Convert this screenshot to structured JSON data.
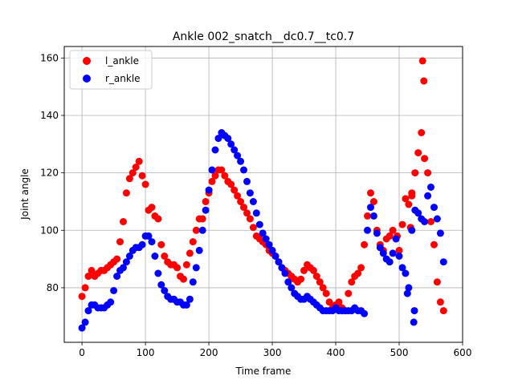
{
  "chart_data": {
    "type": "scatter",
    "title": "Ankle 002_snatch__dc0.7__tc0.7",
    "xlabel": "Time frame",
    "ylabel": "Joint angle",
    "xlim": [
      -28,
      600
    ],
    "ylim": [
      61,
      164
    ],
    "xticks": [
      0,
      100,
      200,
      300,
      400,
      500,
      600
    ],
    "yticks": [
      80,
      100,
      120,
      140,
      160
    ],
    "grid": true,
    "legend_position": "top-left",
    "series": [
      {
        "name": "l_ankle",
        "color": "#ff0000",
        "x": [
          0,
          5,
          10,
          15,
          20,
          25,
          30,
          35,
          40,
          45,
          50,
          55,
          60,
          65,
          70,
          75,
          80,
          85,
          90,
          95,
          100,
          105,
          110,
          115,
          120,
          125,
          130,
          135,
          140,
          145,
          150,
          155,
          160,
          165,
          170,
          175,
          180,
          185,
          190,
          195,
          200,
          205,
          210,
          215,
          220,
          225,
          230,
          235,
          240,
          245,
          250,
          255,
          260,
          265,
          270,
          275,
          280,
          285,
          290,
          295,
          300,
          305,
          310,
          315,
          320,
          325,
          330,
          335,
          340,
          345,
          350,
          355,
          360,
          365,
          370,
          375,
          380,
          385,
          390,
          395,
          400,
          405,
          410,
          415,
          420,
          425,
          430,
          435,
          440,
          445,
          450,
          455,
          460,
          465,
          470,
          475,
          480,
          485,
          490,
          495,
          500,
          505,
          510,
          515,
          520,
          525,
          530,
          535,
          540,
          545,
          550,
          555,
          560,
          565,
          570,
          537,
          539,
          520,
          518,
          497
        ],
        "y": [
          77,
          80,
          84,
          86,
          84,
          85,
          86,
          86,
          87,
          88,
          89,
          90,
          96,
          103,
          113,
          118,
          120,
          122,
          124,
          119,
          116,
          107,
          108,
          105,
          104,
          95,
          91,
          89,
          88,
          88,
          87,
          84,
          83,
          88,
          92,
          96,
          100,
          104,
          104,
          110,
          113,
          117,
          119,
          121,
          121,
          119,
          117,
          116,
          114,
          112,
          110,
          108,
          106,
          104,
          101,
          98,
          97,
          96,
          95,
          93,
          92,
          91,
          89,
          87,
          86,
          85,
          84,
          83,
          82,
          83,
          86,
          88,
          87,
          86,
          84,
          82,
          80,
          78,
          75,
          73,
          74,
          75,
          73,
          72,
          78,
          82,
          84,
          85,
          87,
          95,
          105,
          113,
          110,
          100,
          95,
          93,
          97,
          98,
          100,
          97,
          93,
          102,
          111,
          109,
          112,
          120,
          127,
          134,
          125,
          120,
          103,
          95,
          82,
          75,
          72,
          159,
          152,
          113,
          101,
          98
        ]
      },
      {
        "name": "r_ankle",
        "color": "#0000ff",
        "x": [
          0,
          5,
          10,
          15,
          20,
          25,
          30,
          35,
          40,
          45,
          50,
          55,
          60,
          65,
          70,
          75,
          80,
          85,
          90,
          95,
          100,
          105,
          110,
          115,
          120,
          125,
          130,
          135,
          140,
          145,
          150,
          155,
          160,
          165,
          170,
          175,
          180,
          185,
          190,
          195,
          200,
          205,
          210,
          215,
          220,
          225,
          230,
          235,
          240,
          245,
          250,
          255,
          260,
          265,
          270,
          275,
          280,
          285,
          290,
          295,
          300,
          305,
          310,
          315,
          320,
          325,
          330,
          335,
          340,
          345,
          350,
          355,
          360,
          365,
          370,
          375,
          380,
          385,
          390,
          395,
          400,
          405,
          410,
          415,
          420,
          425,
          430,
          435,
          440,
          445,
          450,
          455,
          460,
          465,
          470,
          475,
          480,
          485,
          490,
          495,
          500,
          505,
          510,
          515,
          520,
          525,
          530,
          535,
          540,
          545,
          550,
          555,
          560,
          565,
          570,
          513,
          523,
          524
        ],
        "y": [
          66,
          68,
          72,
          74,
          74,
          73,
          73,
          73,
          74,
          75,
          79,
          84,
          86,
          87,
          89,
          91,
          93,
          94,
          94,
          95,
          98,
          98,
          96,
          91,
          85,
          81,
          79,
          77,
          76,
          76,
          75,
          75,
          74,
          74,
          76,
          82,
          87,
          93,
          100,
          107,
          114,
          121,
          128,
          132,
          134,
          133,
          132,
          130,
          128,
          126,
          124,
          121,
          117,
          113,
          110,
          106,
          102,
          99,
          97,
          95,
          93,
          91,
          89,
          87,
          85,
          82,
          80,
          78,
          77,
          76,
          76,
          77,
          76,
          75,
          74,
          73,
          72,
          72,
          72,
          72,
          73,
          72,
          72,
          72,
          72,
          72,
          73,
          72,
          72,
          71,
          100,
          108,
          105,
          99,
          94,
          92,
          90,
          89,
          92,
          97,
          91,
          87,
          85,
          80,
          100,
          107,
          106,
          104,
          103,
          112,
          115,
          108,
          104,
          99,
          89,
          78,
          68,
          72
        ]
      }
    ]
  }
}
